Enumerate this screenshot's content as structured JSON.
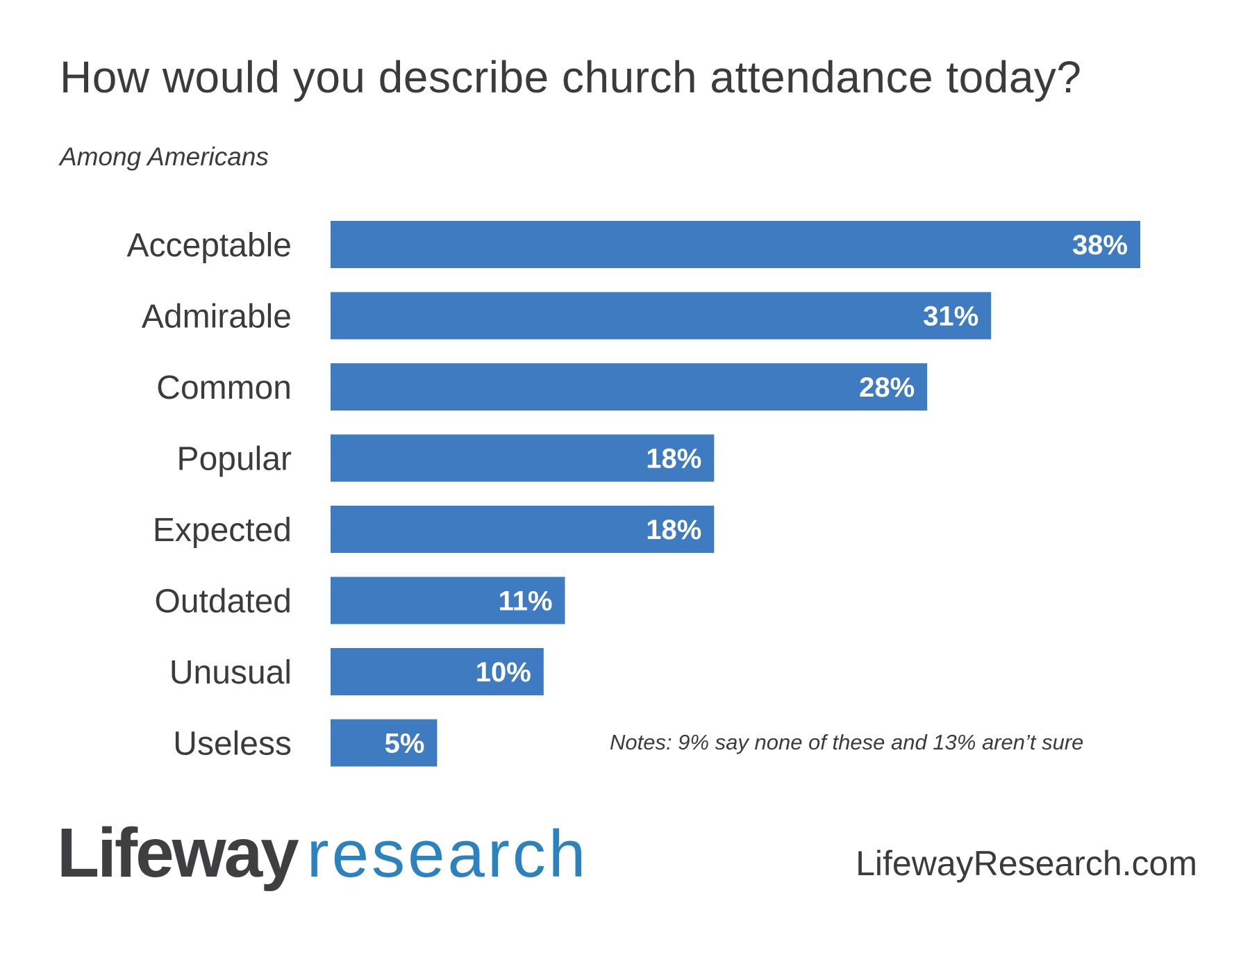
{
  "header": {
    "title": "How would you describe church attendance today?",
    "subtitle": "Among Americans"
  },
  "chart_data": {
    "type": "bar",
    "orientation": "horizontal",
    "title": "How would you describe church attendance today?",
    "subtitle": "Among Americans",
    "categories": [
      "Acceptable",
      "Admirable",
      "Common",
      "Popular",
      "Expected",
      "Outdated",
      "Unusual",
      "Useless"
    ],
    "values": [
      38,
      31,
      28,
      18,
      18,
      11,
      10,
      5
    ],
    "value_labels": [
      "38%",
      "31%",
      "28%",
      "18%",
      "18%",
      "11%",
      "10%",
      "5%"
    ],
    "unit": "%",
    "xlim": [
      0,
      38
    ],
    "bar_color": "#3f7bc0",
    "grid": false,
    "legend": "none"
  },
  "footer": {
    "notes": "Notes: 9% say none of these and 13% aren’t sure",
    "logo_primary": "Lifeway",
    "logo_secondary": "research",
    "website": "LifewayResearch.com"
  },
  "colors": {
    "bar": "#3f7bc0",
    "text": "#3b3b3d",
    "logo_dark": "#3f3f41",
    "logo_blue": "#2b82be"
  }
}
